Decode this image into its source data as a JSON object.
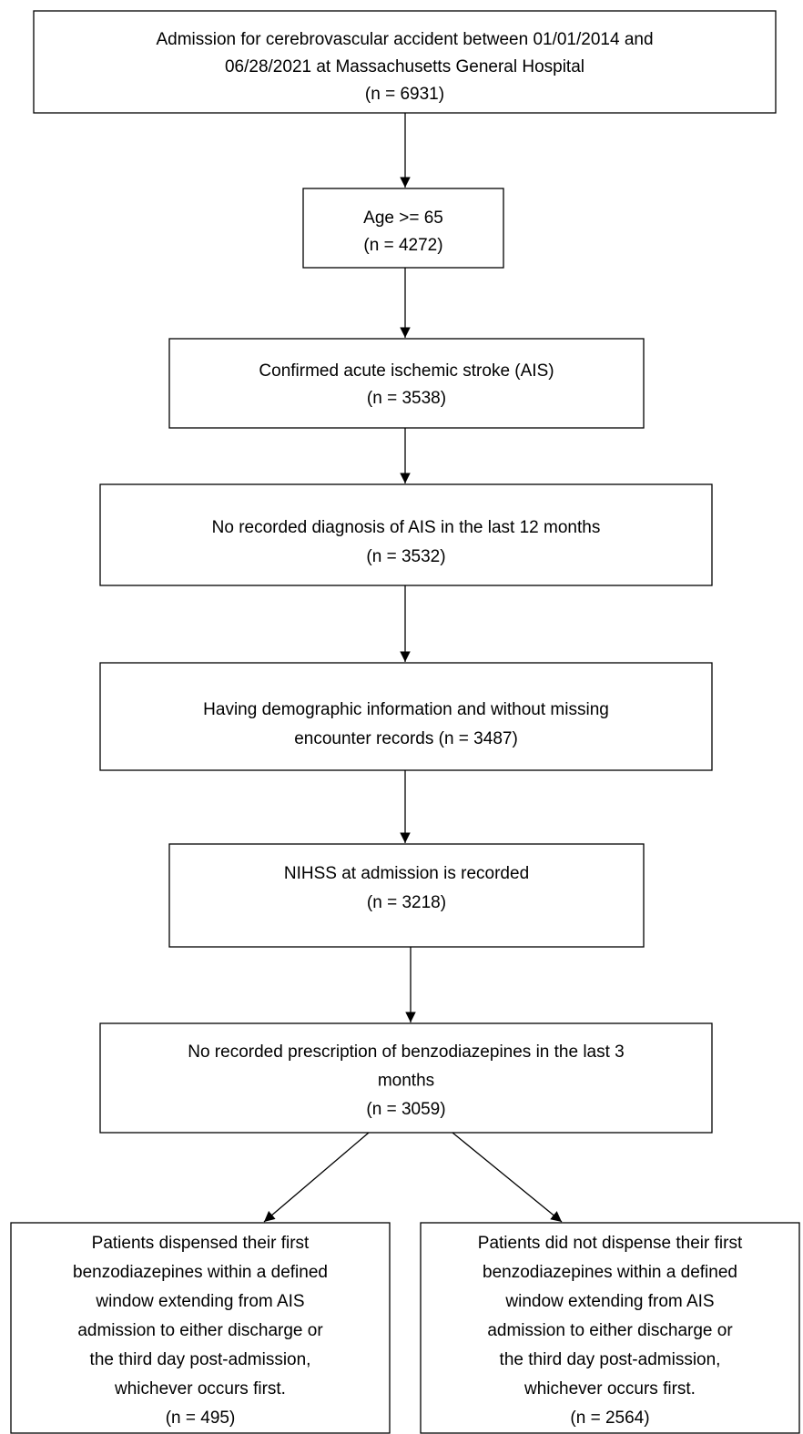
{
  "nodes": [
    {
      "lines": [
        "Admission for cerebrovascular accident between 01/01/2014 and",
        "06/28/2021 at Massachusetts General Hospital",
        "(n = 6931)"
      ]
    },
    {
      "lines": [
        "Age >= 65",
        "(n = 4272)"
      ]
    },
    {
      "lines": [
        "Confirmed acute ischemic stroke (AIS)",
        "(n = 3538)"
      ]
    },
    {
      "lines": [
        "No recorded diagnosis of AIS in the last 12 months",
        "(n = 3532)"
      ]
    },
    {
      "lines": [
        "Having demographic information and without missing",
        "encounter records (n = 3487)"
      ]
    },
    {
      "lines": [
        "NIHSS at admission is recorded",
        "(n = 3218)"
      ]
    },
    {
      "lines": [
        "No recorded prescription of benzodiazepines in the last 3",
        "months",
        "(n = 3059)"
      ]
    },
    {
      "lines": [
        "Patients dispensed their first",
        "benzodiazepines within a defined",
        "window extending from AIS",
        "admission to either discharge or",
        "the third day post-admission,",
        "whichever occurs first.",
        "(n = 495)"
      ]
    },
    {
      "lines": [
        "Patients did not dispense their first",
        "benzodiazepines within a defined",
        "window extending from AIS",
        "admission to either discharge or",
        "the third day post-admission,",
        "whichever occurs first.",
        "(n = 2564)"
      ]
    }
  ]
}
